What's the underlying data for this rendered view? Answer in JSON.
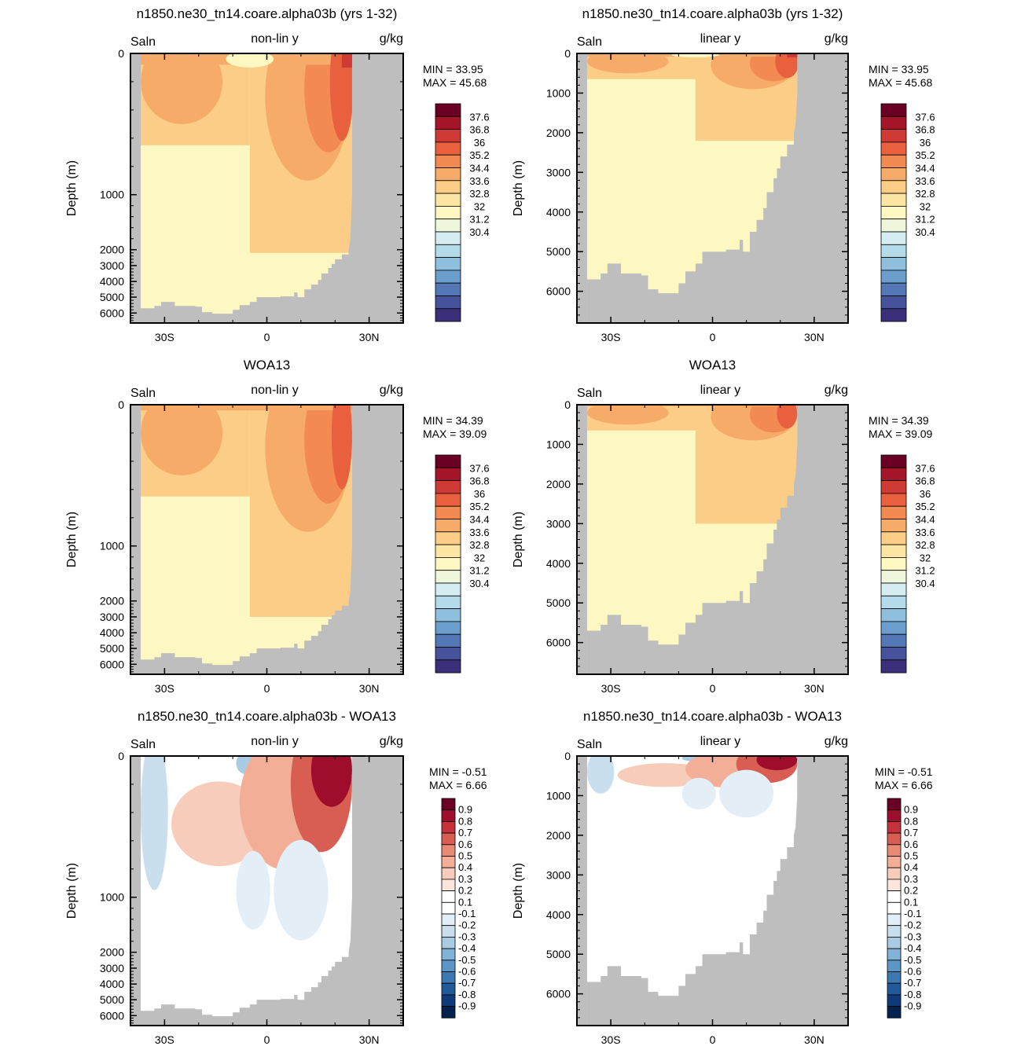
{
  "chart_data": [
    {
      "type": "heatmap",
      "title": "n1850.ne30_tn14.coare.alpha03b (yrs 1-32)",
      "left_label": "Saln",
      "center_label": "non-lin y",
      "right_label": "g/kg",
      "ylabel": "Depth (m)",
      "yscale": "non-linear",
      "x_ticks": [
        "30S",
        "0",
        "30N"
      ],
      "y_ticks": [
        "0",
        "1000",
        "2000",
        "3000",
        "4000",
        "5000",
        "6000"
      ],
      "min_label": "MIN =  33.95",
      "max_label": "MAX =  45.68",
      "colorbar_labels": [
        "37.6",
        "36.8",
        "36",
        "35.2",
        "34.4",
        "33.6",
        "32.8",
        "32",
        "31.2",
        "30.4"
      ],
      "palette": "salinity",
      "field": "model"
    },
    {
      "type": "heatmap",
      "title": "n1850.ne30_tn14.coare.alpha03b (yrs 1-32)",
      "left_label": "Saln",
      "center_label": "linear y",
      "right_label": "g/kg",
      "ylabel": "Depth (m)",
      "yscale": "linear",
      "x_ticks": [
        "30S",
        "0",
        "30N"
      ],
      "y_ticks": [
        "0",
        "1000",
        "2000",
        "3000",
        "4000",
        "5000",
        "6000"
      ],
      "min_label": "MIN =  33.95",
      "max_label": "MAX =  45.68",
      "colorbar_labels": [
        "37.6",
        "36.8",
        "36",
        "35.2",
        "34.4",
        "33.6",
        "32.8",
        "32",
        "31.2",
        "30.4"
      ],
      "palette": "salinity",
      "field": "model"
    },
    {
      "type": "heatmap",
      "title": "WOA13",
      "left_label": "Saln",
      "center_label": "non-lin y",
      "right_label": "g/kg",
      "ylabel": "Depth (m)",
      "yscale": "non-linear",
      "x_ticks": [
        "30S",
        "0",
        "30N"
      ],
      "y_ticks": [
        "0",
        "1000",
        "2000",
        "3000",
        "4000",
        "5000",
        "6000"
      ],
      "min_label": "MIN =  34.39",
      "max_label": "MAX =  39.09",
      "colorbar_labels": [
        "37.6",
        "36.8",
        "36",
        "35.2",
        "34.4",
        "33.6",
        "32.8",
        "32",
        "31.2",
        "30.4"
      ],
      "palette": "salinity",
      "field": "obs"
    },
    {
      "type": "heatmap",
      "title": "WOA13",
      "left_label": "Saln",
      "center_label": "linear y",
      "right_label": "g/kg",
      "ylabel": "Depth (m)",
      "yscale": "linear",
      "x_ticks": [
        "30S",
        "0",
        "30N"
      ],
      "y_ticks": [
        "0",
        "1000",
        "2000",
        "3000",
        "4000",
        "5000",
        "6000"
      ],
      "min_label": "MIN =  34.39",
      "max_label": "MAX =  39.09",
      "colorbar_labels": [
        "37.6",
        "36.8",
        "36",
        "35.2",
        "34.4",
        "33.6",
        "32.8",
        "32",
        "31.2",
        "30.4"
      ],
      "palette": "salinity",
      "field": "obs"
    },
    {
      "type": "heatmap",
      "title": "n1850.ne30_tn14.coare.alpha03b - WOA13",
      "left_label": "Saln",
      "center_label": "non-lin y",
      "right_label": "g/kg",
      "ylabel": "Depth (m)",
      "yscale": "non-linear",
      "x_ticks": [
        "30S",
        "0",
        "30N"
      ],
      "y_ticks": [
        "0",
        "1000",
        "2000",
        "3000",
        "4000",
        "5000",
        "6000"
      ],
      "min_label": "MIN =  -0.51",
      "max_label": "MAX =   6.66",
      "colorbar_labels": [
        "0.9",
        "0.8",
        "0.7",
        "0.6",
        "0.5",
        "0.4",
        "0.3",
        "0.2",
        "0.1",
        "-0.1",
        "-0.2",
        "-0.3",
        "-0.4",
        "-0.5",
        "-0.6",
        "-0.7",
        "-0.8",
        "-0.9"
      ],
      "palette": "difference",
      "field": "diff"
    },
    {
      "type": "heatmap",
      "title": "n1850.ne30_tn14.coare.alpha03b - WOA13",
      "left_label": "Saln",
      "center_label": "linear y",
      "right_label": "g/kg",
      "ylabel": "Depth (m)",
      "yscale": "linear",
      "x_ticks": [
        "30S",
        "0",
        "30N"
      ],
      "y_ticks": [
        "0",
        "1000",
        "2000",
        "3000",
        "4000",
        "5000",
        "6000"
      ],
      "min_label": "MIN =  -0.51",
      "max_label": "MAX =   6.66",
      "colorbar_labels": [
        "0.9",
        "0.8",
        "0.7",
        "0.6",
        "0.5",
        "0.4",
        "0.3",
        "0.2",
        "0.1",
        "-0.1",
        "-0.2",
        "-0.3",
        "-0.4",
        "-0.5",
        "-0.6",
        "-0.7",
        "-0.8",
        "-0.9"
      ],
      "palette": "difference",
      "field": "diff"
    }
  ],
  "colors": {
    "land": "#bebebe",
    "salinity_scale": [
      "#6b0025",
      "#a4152a",
      "#cf3a34",
      "#e8603e",
      "#f28a52",
      "#f7ab68",
      "#fbcd87",
      "#fde6a4",
      "#fdf7c2",
      "#eef6dc",
      "#d4ecf2",
      "#b3dbea",
      "#8ec0de",
      "#6b9ecd",
      "#5378b5",
      "#46529a",
      "#3b2f7a"
    ],
    "difference_scale": [
      "#6b0025",
      "#9e0d2b",
      "#c4323b",
      "#d85e53",
      "#e88a74",
      "#f2ae96",
      "#f8ccba",
      "#fce6dc",
      "#ffffff",
      "#ffffff",
      "#e3eef6",
      "#c9dfee",
      "#a9cce4",
      "#82b3d7",
      "#5b96c6",
      "#3c78b2",
      "#225999",
      "#103a7a",
      "#03234e"
    ]
  }
}
